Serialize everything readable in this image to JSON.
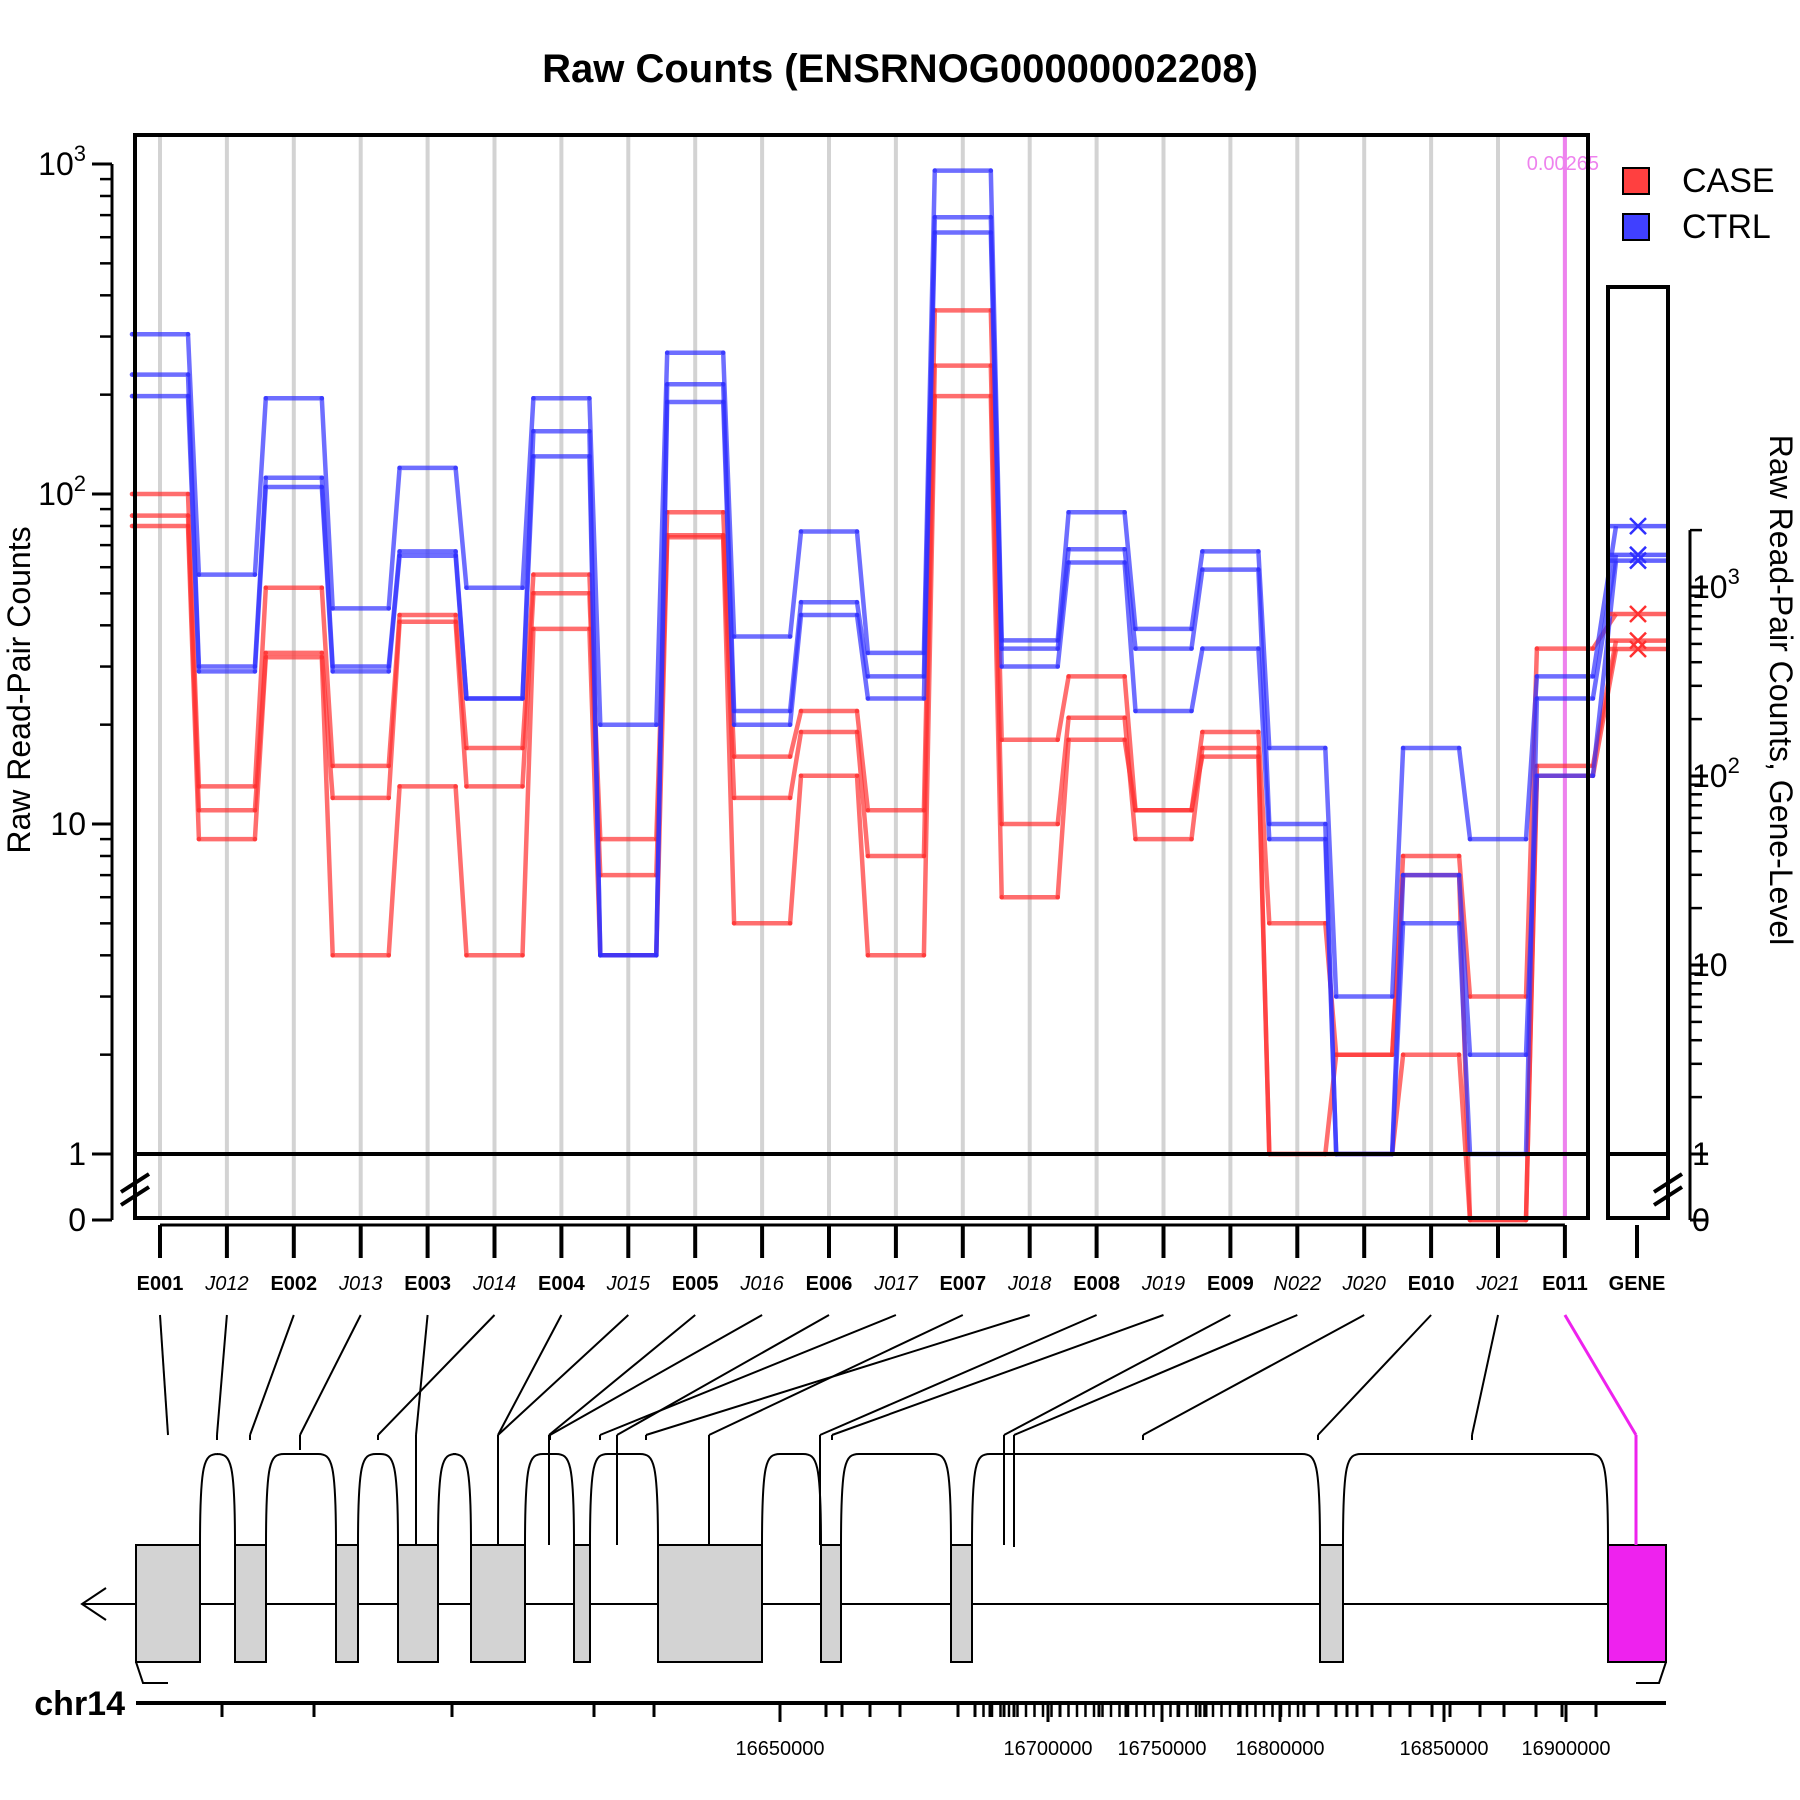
{
  "chart_data": {
    "type": "line",
    "title": "Raw Counts (ENSRNOG00000002208)",
    "ylabel": "Raw Read-Pair Counts",
    "ylabel_right": "Raw Read-Pair Counts, Gene-Level",
    "yscale": "log",
    "ylim": [
      0,
      1200
    ],
    "y_ticks": [
      {
        "value": 1000,
        "base": "10",
        "exp": "3"
      },
      {
        "value": 100,
        "base": "10",
        "exp": "2"
      },
      {
        "value": 10,
        "base": "10",
        "exp": ""
      },
      {
        "value": 1,
        "base": "1",
        "exp": ""
      },
      {
        "value": 0,
        "base": "0",
        "exp": ""
      }
    ],
    "y_ticks_right": [
      {
        "value": 1000,
        "base": "10",
        "exp": "3"
      },
      {
        "value": 100,
        "base": "10",
        "exp": "2"
      },
      {
        "value": 10,
        "base": "10",
        "exp": ""
      },
      {
        "value": 1,
        "base": "1",
        "exp": ""
      },
      {
        "value": 0,
        "base": "0",
        "exp": ""
      }
    ],
    "legend_position": "top-right",
    "legend": [
      {
        "label": "CASE",
        "color": "#ff4040"
      },
      {
        "label": "CTRL",
        "color": "#4040ff"
      }
    ],
    "grid": "vertical",
    "categories": [
      "E001",
      "J012",
      "E002",
      "J013",
      "E003",
      "J014",
      "E004",
      "J015",
      "E005",
      "J016",
      "E006",
      "J017",
      "E007",
      "J018",
      "E008",
      "J019",
      "E009",
      "N022",
      "J020",
      "E010",
      "J021",
      "E011"
    ],
    "category_styles": [
      "bold",
      "italic",
      "bold",
      "italic",
      "bold",
      "italic",
      "bold",
      "italic",
      "bold",
      "italic",
      "bold",
      "italic",
      "bold",
      "italic",
      "bold",
      "italic",
      "bold",
      "italic",
      "italic",
      "bold",
      "italic",
      "bold"
    ],
    "gene_label": "GENE",
    "series": [
      {
        "group": "CASE",
        "color": "#ff3030",
        "values": [
          100,
          13,
          52,
          15,
          43,
          17,
          57,
          9,
          88,
          16,
          22,
          11,
          360,
          18,
          28,
          11,
          19,
          5,
          2,
          8,
          3,
          34
        ]
      },
      {
        "group": "CASE",
        "color": "#ff3030",
        "values": [
          86,
          11,
          33,
          12,
          41,
          13,
          50,
          7,
          75,
          12,
          19,
          8,
          245,
          10,
          21,
          9,
          17,
          1,
          2,
          7,
          0,
          15
        ]
      },
      {
        "group": "CASE",
        "color": "#ff3030",
        "values": [
          80,
          9,
          32,
          4,
          13,
          4,
          39,
          4,
          74,
          5,
          14,
          4,
          198,
          6,
          18,
          11,
          16,
          1,
          1,
          2,
          0,
          14
        ]
      },
      {
        "group": "CTRL",
        "color": "#3030ff",
        "values": [
          305,
          57,
          195,
          45,
          120,
          52,
          195,
          20,
          268,
          37,
          77,
          33,
          955,
          36,
          88,
          39,
          67,
          17,
          3,
          17,
          9,
          28
        ]
      },
      {
        "group": "CTRL",
        "color": "#3030ff",
        "values": [
          230,
          30,
          112,
          30,
          67,
          24,
          155,
          4,
          215,
          22,
          47,
          28,
          690,
          34,
          68,
          34,
          59,
          10,
          1,
          5,
          1,
          24
        ]
      },
      {
        "group": "CTRL",
        "color": "#3030ff",
        "values": [
          198,
          29,
          105,
          29,
          65,
          24,
          130,
          4,
          190,
          20,
          43,
          24,
          620,
          30,
          62,
          22,
          34,
          9,
          1,
          7,
          2,
          14
        ]
      }
    ],
    "gene_level": [
      {
        "group": "CASE",
        "color": "#ff3030",
        "value": 720
      },
      {
        "group": "CASE",
        "color": "#ff3030",
        "value": 520
      },
      {
        "group": "CASE",
        "color": "#ff3030",
        "value": 470
      },
      {
        "group": "CTRL",
        "color": "#3030ff",
        "value": 2100
      },
      {
        "group": "CTRL",
        "color": "#3030ff",
        "value": 1480
      },
      {
        "group": "CTRL",
        "color": "#3030ff",
        "value": 1380
      }
    ],
    "highlight": {
      "category": "E011",
      "color": "#ee82ee",
      "label": "0.00265"
    },
    "genome_track": {
      "chromosome": "chr14",
      "axis_labels": [
        "16650000",
        "16700000",
        "16750000",
        "16800000",
        "16850000",
        "16900000"
      ],
      "highlight_color": "#ee22ee",
      "exon_color": "#d3d3d3",
      "strand": "minus"
    }
  }
}
